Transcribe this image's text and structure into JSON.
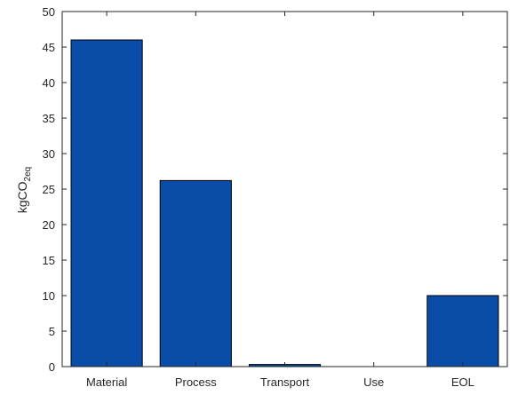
{
  "chart_data": {
    "type": "bar",
    "categories": [
      "Material",
      "Process",
      "Transport",
      "Use",
      "EOL"
    ],
    "values": [
      46,
      26.2,
      0.3,
      0,
      10
    ],
    "ylabel": {
      "main": "kgCO",
      "sub": "2eq"
    },
    "xlabel": "",
    "title": "",
    "ylim": [
      0,
      50
    ],
    "yticks": [
      0,
      5,
      10,
      15,
      20,
      25,
      30,
      35,
      40,
      45,
      50
    ],
    "grid": false,
    "bar_color": "#0a4da8",
    "edge_color": "#000000"
  }
}
